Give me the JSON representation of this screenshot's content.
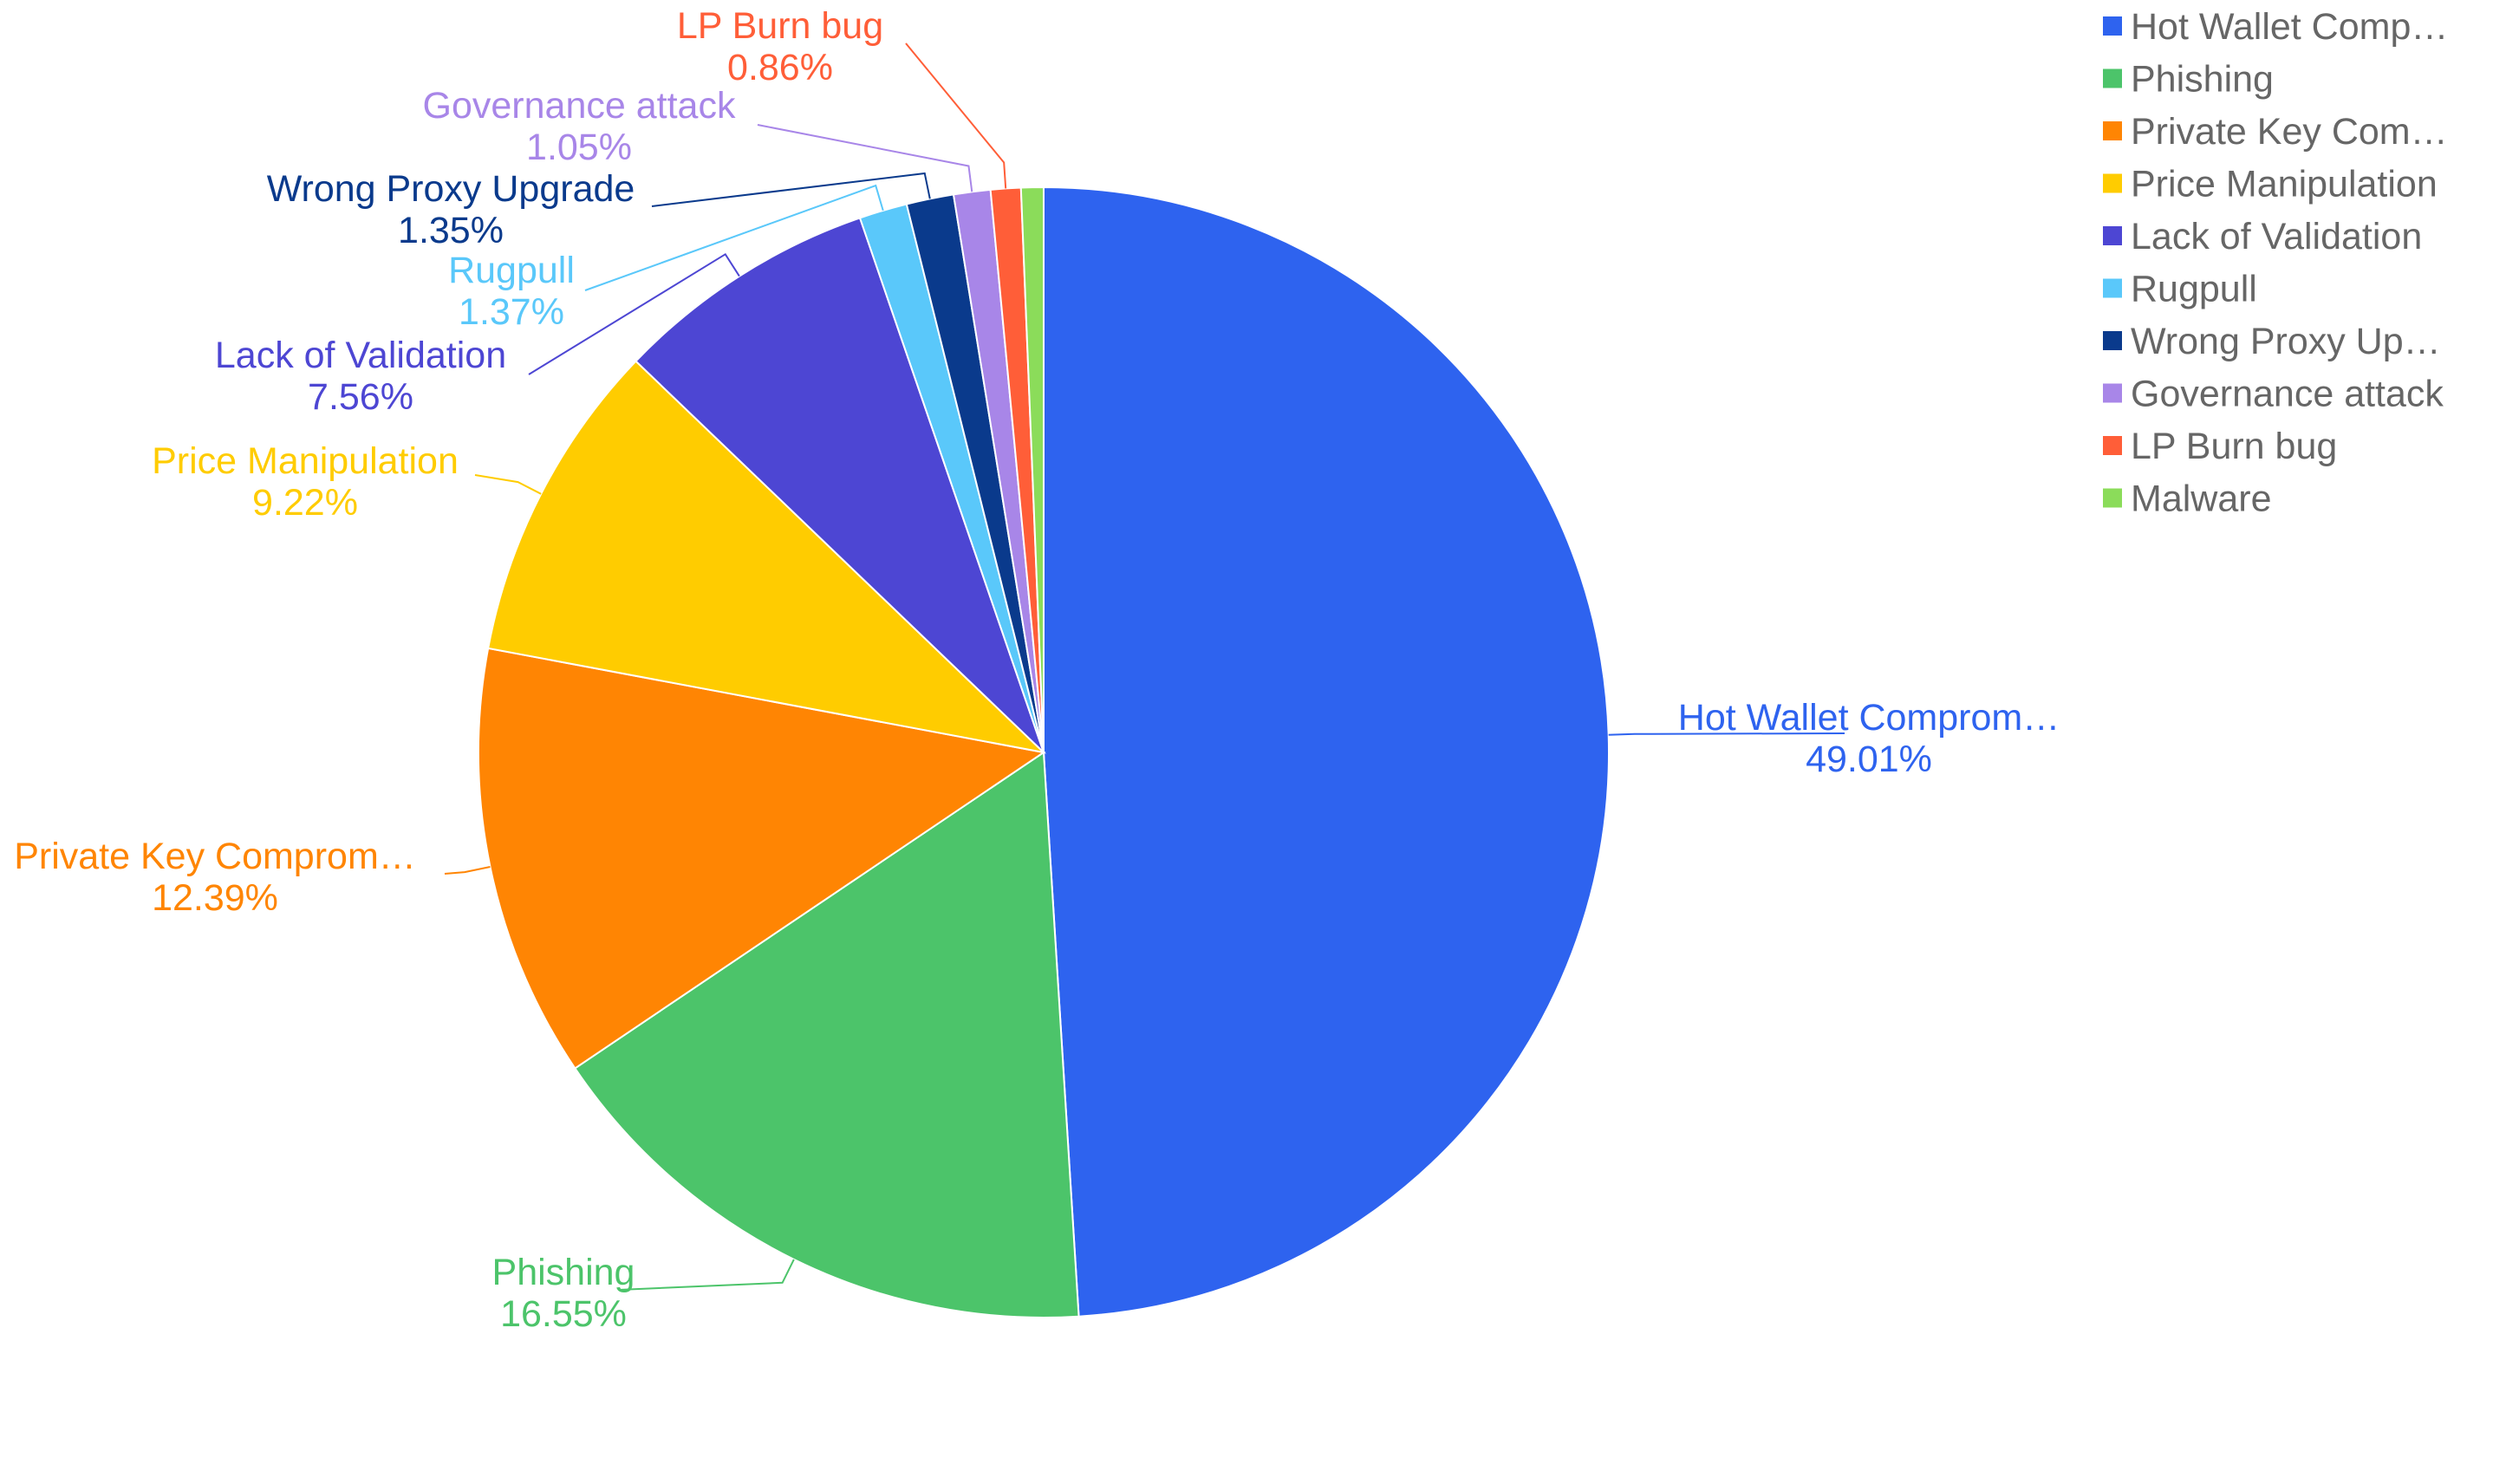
{
  "chart_data": {
    "type": "pie",
    "title": "",
    "start_angle_deg": 90,
    "direction": "clockwise",
    "legend_position": "top-right",
    "slices": [
      {
        "name": "Hot Wallet Compromise",
        "value": 49.01,
        "label_name": "Hot Wallet Comprom…",
        "label_value": "49.01%",
        "legend_label": "Hot Wallet Comp…",
        "color": "#2E63EF"
      },
      {
        "name": "Phishing",
        "value": 16.55,
        "label_name": "Phishing",
        "label_value": "16.55%",
        "legend_label": "Phishing",
        "color": "#4CC46A"
      },
      {
        "name": "Private Key Compromise",
        "value": 12.39,
        "label_name": "Private Key Comprom…",
        "label_value": "12.39%",
        "legend_label": "Private Key Com…",
        "color": "#FF8503"
      },
      {
        "name": "Price Manipulation",
        "value": 9.22,
        "label_name": "Price Manipulation",
        "label_value": "9.22%",
        "legend_label": "Price Manipulation",
        "color": "#FFCC00"
      },
      {
        "name": "Lack of Validation",
        "value": 7.56,
        "label_name": "Lack of Validation",
        "label_value": "7.56%",
        "legend_label": "Lack of Validation",
        "color": "#4D46D3"
      },
      {
        "name": "Rugpull",
        "value": 1.37,
        "label_name": "Rugpull",
        "label_value": "1.37%",
        "legend_label": "Rugpull",
        "color": "#5AC8FA"
      },
      {
        "name": "Wrong Proxy Upgrade",
        "value": 1.35,
        "label_name": "Wrong Proxy Upgrade",
        "label_value": "1.35%",
        "legend_label": "Wrong Proxy Up…",
        "color": "#0A3A8C"
      },
      {
        "name": "Governance attack",
        "value": 1.05,
        "label_name": "Governance attack",
        "label_value": "1.05%",
        "legend_label": "Governance attack",
        "color": "#A886E8"
      },
      {
        "name": "LP Burn bug",
        "value": 0.86,
        "label_name": "LP Burn bug",
        "label_value": "0.86%",
        "legend_label": "LP Burn bug",
        "color": "#FF5E38"
      },
      {
        "name": "Malware",
        "value": 0.64,
        "label_name": "",
        "label_value": "",
        "legend_label": "Malware",
        "color": "#8BDC5A"
      }
    ]
  }
}
